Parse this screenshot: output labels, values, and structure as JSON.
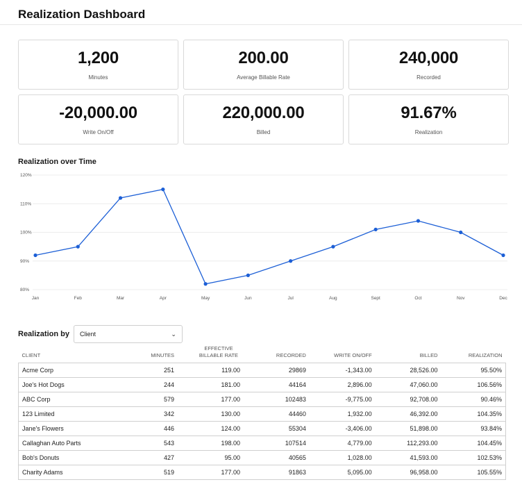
{
  "header": {
    "title": "Realization Dashboard"
  },
  "cards": [
    {
      "value": "1,200",
      "label": "Minutes"
    },
    {
      "value": "200.00",
      "label": "Average Billable Rate"
    },
    {
      "value": "240,000",
      "label": "Recorded"
    },
    {
      "value": "-20,000.00",
      "label": "Write On/Off"
    },
    {
      "value": "220,000.00",
      "label": "Billed"
    },
    {
      "value": "91.67%",
      "label": "Realization"
    }
  ],
  "chart_title": "Realization over Time",
  "chart_data": {
    "type": "line",
    "categories": [
      "Jan",
      "Feb",
      "Mar",
      "Apr",
      "May",
      "Jun",
      "Jul",
      "Aug",
      "Sept",
      "Oct",
      "Nov",
      "Dec"
    ],
    "series": [
      {
        "values": [
          92,
          95,
          112,
          115,
          82,
          85,
          90,
          95,
          101,
          104,
          100,
          92
        ]
      }
    ],
    "y_ticks": [
      "80%",
      "90%",
      "100%",
      "110%",
      "120%"
    ],
    "ylim": [
      80,
      120
    ],
    "grid": true,
    "color": "#1c5fd6"
  },
  "realization_by": {
    "label": "Realization by",
    "selected": "Client"
  },
  "table": {
    "headers": [
      "Client",
      "Minutes",
      "Effective Billable Rate",
      "Recorded",
      "Write On/Off",
      "Billed",
      "Realization"
    ],
    "rows": [
      [
        "Acme Corp",
        "251",
        "119.00",
        "29869",
        "-1,343.00",
        "28,526.00",
        "95.50%"
      ],
      [
        "Joe's Hot Dogs",
        "244",
        "181.00",
        "44164",
        "2,896.00",
        "47,060.00",
        "106.56%"
      ],
      [
        "ABC Corp",
        "579",
        "177.00",
        "102483",
        "-9,775.00",
        "92,708.00",
        "90.46%"
      ],
      [
        "123 Limited",
        "342",
        "130.00",
        "44460",
        "1,932.00",
        "46,392.00",
        "104.35%"
      ],
      [
        "Jane's Flowers",
        "446",
        "124.00",
        "55304",
        "-3,406.00",
        "51,898.00",
        "93.84%"
      ],
      [
        "Callaghan Auto Parts",
        "543",
        "198.00",
        "107514",
        "4,779.00",
        "112,293.00",
        "104.45%"
      ],
      [
        "Bob's Donuts",
        "427",
        "95.00",
        "40565",
        "1,028.00",
        "41,593.00",
        "102.53%"
      ],
      [
        "Charity Adams",
        "519",
        "177.00",
        "91863",
        "5,095.00",
        "96,958.00",
        "105.55%"
      ]
    ]
  }
}
